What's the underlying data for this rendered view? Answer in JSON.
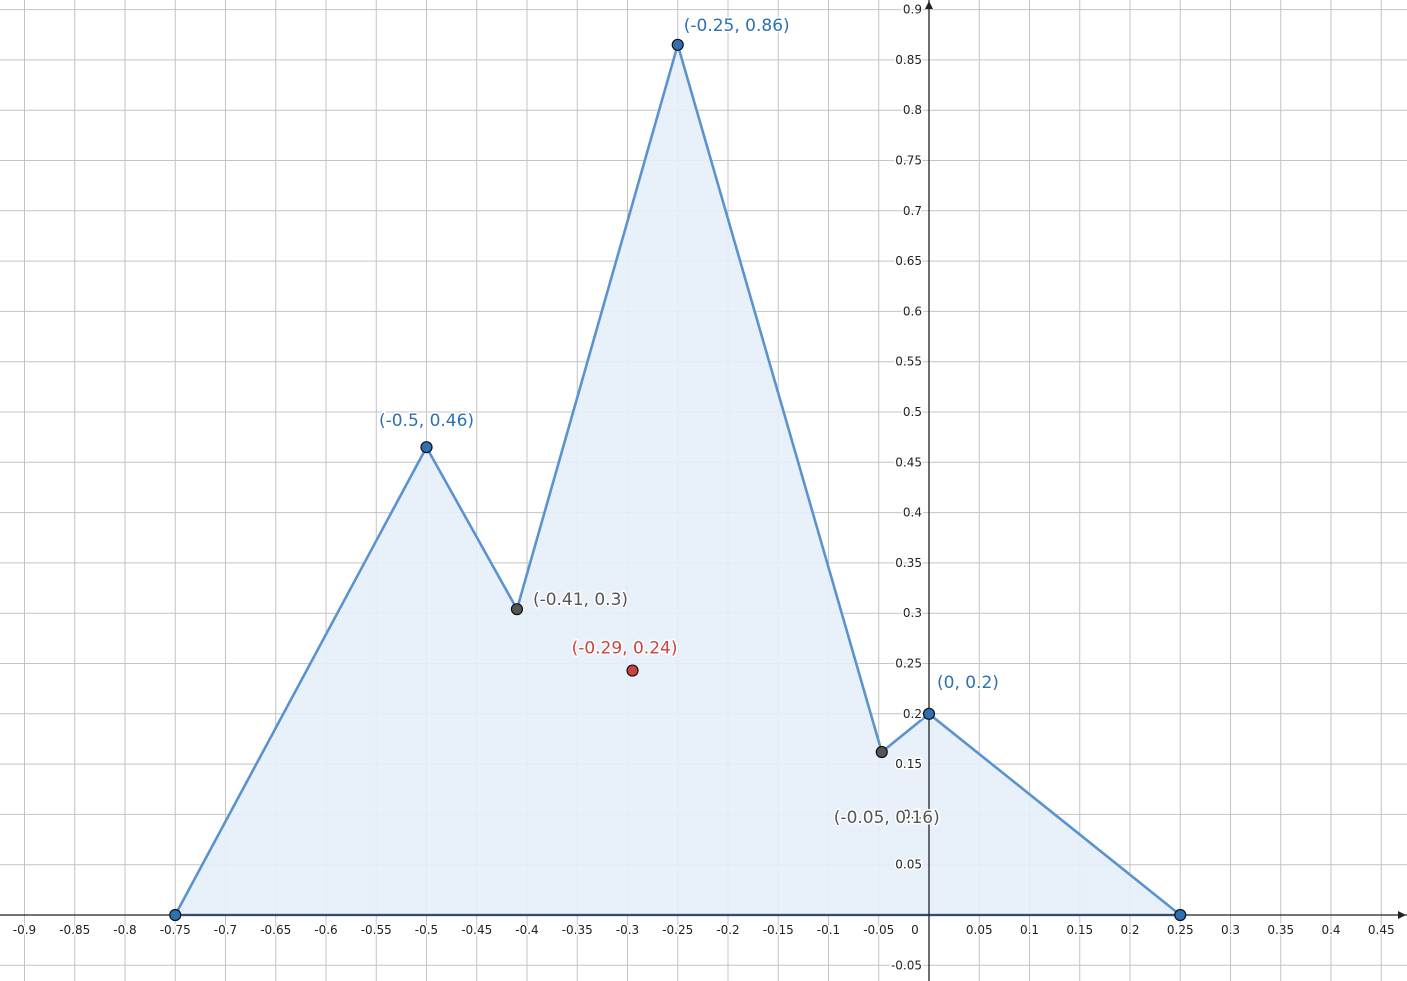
{
  "chart_data": {
    "type": "scatter",
    "xlim": [
      -0.9,
      0.45
    ],
    "ylim": [
      -0.05,
      0.9
    ],
    "grid": true,
    "x_ticks": [
      {
        "v": -0.9,
        "t": "-0.9"
      },
      {
        "v": -0.85,
        "t": "-0.85"
      },
      {
        "v": -0.8,
        "t": "-0.8"
      },
      {
        "v": -0.75,
        "t": "-0.75"
      },
      {
        "v": -0.7,
        "t": "-0.7"
      },
      {
        "v": -0.65,
        "t": "-0.65"
      },
      {
        "v": -0.6,
        "t": "-0.6"
      },
      {
        "v": -0.55,
        "t": "-0.55"
      },
      {
        "v": -0.5,
        "t": "-0.5"
      },
      {
        "v": -0.45,
        "t": "-0.45"
      },
      {
        "v": -0.4,
        "t": "-0.4"
      },
      {
        "v": -0.35,
        "t": "-0.35"
      },
      {
        "v": -0.3,
        "t": "-0.3"
      },
      {
        "v": -0.25,
        "t": "-0.25"
      },
      {
        "v": -0.2,
        "t": "-0.2"
      },
      {
        "v": -0.15,
        "t": "-0.15"
      },
      {
        "v": -0.1,
        "t": "-0.1"
      },
      {
        "v": -0.05,
        "t": "-0.05"
      },
      {
        "v": 0,
        "t": "0"
      },
      {
        "v": 0.05,
        "t": "0.05"
      },
      {
        "v": 0.1,
        "t": "0.1"
      },
      {
        "v": 0.15,
        "t": "0.15"
      },
      {
        "v": 0.2,
        "t": "0.2"
      },
      {
        "v": 0.25,
        "t": "0.25"
      },
      {
        "v": 0.3,
        "t": "0.3"
      },
      {
        "v": 0.35,
        "t": "0.35"
      },
      {
        "v": 0.4,
        "t": "0.4"
      },
      {
        "v": 0.45,
        "t": "0.45"
      }
    ],
    "y_ticks": [
      {
        "v": -0.05,
        "t": "-0.05"
      },
      {
        "v": 0.05,
        "t": "0.05"
      },
      {
        "v": 0.1,
        "t": "0.1"
      },
      {
        "v": 0.15,
        "t": "0.15"
      },
      {
        "v": 0.2,
        "t": "0.2"
      },
      {
        "v": 0.25,
        "t": "0.25"
      },
      {
        "v": 0.3,
        "t": "0.3"
      },
      {
        "v": 0.35,
        "t": "0.35"
      },
      {
        "v": 0.4,
        "t": "0.4"
      },
      {
        "v": 0.45,
        "t": "0.45"
      },
      {
        "v": 0.5,
        "t": "0.5"
      },
      {
        "v": 0.55,
        "t": "0.55"
      },
      {
        "v": 0.6,
        "t": "0.6"
      },
      {
        "v": 0.65,
        "t": "0.65"
      },
      {
        "v": 0.7,
        "t": "0.7"
      },
      {
        "v": 0.75,
        "t": "0.75"
      },
      {
        "v": 0.8,
        "t": "0.8"
      },
      {
        "v": 0.85,
        "t": "0.85"
      },
      {
        "v": 0.9,
        "t": "0.9"
      }
    ],
    "polygon": [
      [
        -0.75,
        0
      ],
      [
        -0.5,
        0.465
      ],
      [
        -0.41,
        0.304
      ],
      [
        -0.25,
        0.865
      ],
      [
        -0.047,
        0.162
      ],
      [
        0,
        0.2
      ],
      [
        0.25,
        0
      ]
    ],
    "points": [
      {
        "x": -0.75,
        "y": 0,
        "color": "#2d70b3",
        "label": ""
      },
      {
        "x": -0.5,
        "y": 0.465,
        "color": "#2d70b3",
        "label": "(-0.5, 0.46)"
      },
      {
        "x": -0.41,
        "y": 0.304,
        "color": "#555555",
        "label": "(-0.41, 0.3)"
      },
      {
        "x": -0.25,
        "y": 0.865,
        "color": "#2d70b3",
        "label": "(-0.25, 0.86)"
      },
      {
        "x": -0.047,
        "y": 0.162,
        "color": "#555555",
        "label": "(-0.05, 0.16)"
      },
      {
        "x": 0,
        "y": 0.2,
        "color": "#2d70b3",
        "label": "(0, 0.2)"
      },
      {
        "x": 0.25,
        "y": 0,
        "color": "#2d70b3",
        "label": ""
      },
      {
        "x": -0.295,
        "y": 0.243,
        "color": "#c74440",
        "label": "(-0.29, 0.24)"
      }
    ],
    "colors": {
      "polygon_stroke": "#5b93cf",
      "polygon_fill": "#e5eef9",
      "blue_label": "#2d70b3",
      "gray_label": "#555555",
      "red_label": "#c74440",
      "grid_major": "#c4c4c4",
      "axis": "#222222"
    }
  }
}
